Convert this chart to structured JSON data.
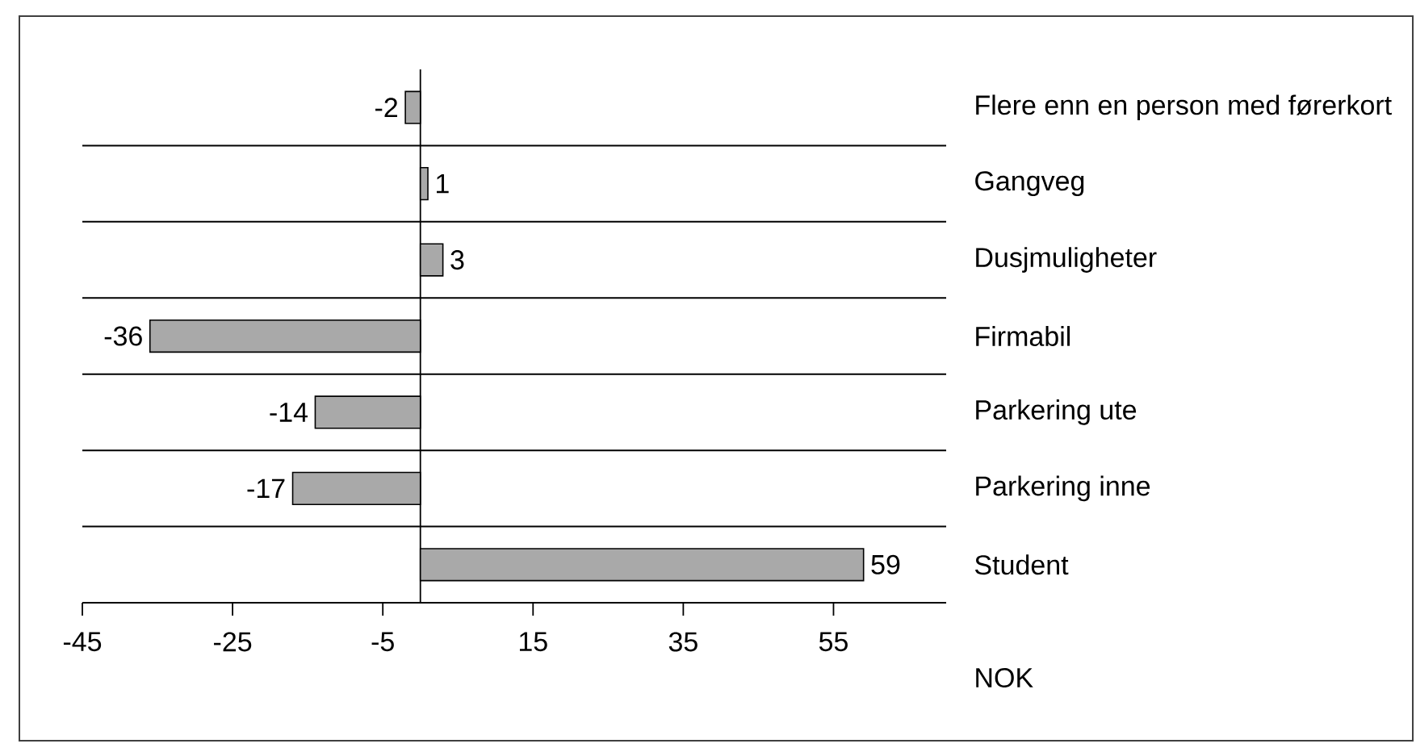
{
  "chart_data": {
    "type": "bar",
    "orientation": "horizontal",
    "categories": [
      "Flere enn en person med førerkort",
      "Gangveg",
      "Dusjmuligheter",
      "Firmabil",
      "Parkering ute",
      "Parkering inne",
      "Student"
    ],
    "values": [
      -2,
      1,
      3,
      -36,
      -14,
      -17,
      59
    ],
    "color": "#a9a9a9",
    "xlim": [
      -45,
      70
    ],
    "xticks": [
      -45,
      -25,
      -5,
      15,
      35,
      55
    ],
    "xlabel": "NOK",
    "data_labels": true,
    "grid": "y"
  }
}
